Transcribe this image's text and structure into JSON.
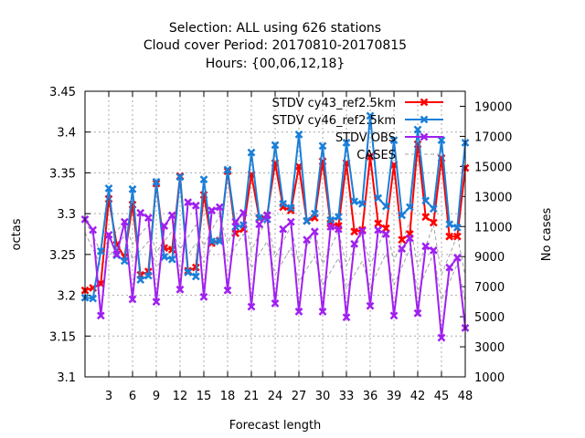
{
  "chart_data": {
    "type": "line",
    "title_lines": [
      "Selection: ALL using   626 stations",
      "Cloud cover   Period: 20170810-20170815",
      "Hours: {00,06,12,18}"
    ],
    "xlabel": "Forecast length",
    "ylabel": "octas",
    "y2label": "No cases",
    "xlim": [
      0,
      48
    ],
    "ylim": [
      3.1,
      3.45
    ],
    "y2lim": [
      1000,
      20000
    ],
    "xticks": [
      3,
      6,
      9,
      12,
      15,
      18,
      21,
      24,
      27,
      30,
      33,
      36,
      39,
      42,
      45,
      48
    ],
    "yticks": [
      3.1,
      3.15,
      3.2,
      3.25,
      3.3,
      3.35,
      3.4,
      3.45
    ],
    "y2ticks": [
      1000,
      3000,
      5000,
      7000,
      9000,
      11000,
      13000,
      15000,
      17000,
      19000
    ],
    "grid": true,
    "legend_position": "top-right",
    "x": [
      0,
      1,
      2,
      3,
      4,
      5,
      6,
      7,
      8,
      9,
      10,
      11,
      12,
      13,
      14,
      15,
      16,
      17,
      18,
      19,
      20,
      21,
      22,
      23,
      24,
      25,
      26,
      27,
      28,
      29,
      30,
      31,
      32,
      33,
      34,
      35,
      36,
      37,
      38,
      39,
      40,
      41,
      42,
      43,
      44,
      45,
      46,
      47,
      48
    ],
    "series": [
      {
        "name": "STDV cy43_ref2.5km",
        "color": "#ff0000",
        "marker": "x",
        "axis": "y",
        "values": [
          3.206,
          3.209,
          3.214,
          3.318,
          3.262,
          3.247,
          3.311,
          3.225,
          3.229,
          3.337,
          3.258,
          3.256,
          3.346,
          3.23,
          3.234,
          3.323,
          3.264,
          3.267,
          3.352,
          3.276,
          3.281,
          3.348,
          3.294,
          3.298,
          3.362,
          3.308,
          3.304,
          3.358,
          3.291,
          3.295,
          3.364,
          3.288,
          3.285,
          3.362,
          3.278,
          3.28,
          3.37,
          3.288,
          3.282,
          3.36,
          3.268,
          3.275,
          3.385,
          3.296,
          3.289,
          3.368,
          3.272,
          3.272,
          3.356
        ]
      },
      {
        "name": "STDV cy46_ref2.5km",
        "color": "#1a7fd9",
        "marker": "x",
        "axis": "y",
        "values": [
          3.197,
          3.196,
          3.254,
          3.331,
          3.249,
          3.242,
          3.33,
          3.219,
          3.224,
          3.339,
          3.247,
          3.244,
          3.345,
          3.228,
          3.223,
          3.342,
          3.266,
          3.266,
          3.354,
          3.284,
          3.286,
          3.375,
          3.295,
          3.293,
          3.384,
          3.312,
          3.307,
          3.397,
          3.291,
          3.3,
          3.383,
          3.292,
          3.296,
          3.387,
          3.315,
          3.312,
          3.42,
          3.319,
          3.309,
          3.39,
          3.298,
          3.308,
          3.403,
          3.316,
          3.306,
          3.39,
          3.287,
          3.283,
          3.387
        ]
      },
      {
        "name": "STDV OBS",
        "color": "#a020f0",
        "marker": "x",
        "axis": "y",
        "values": [
          3.293,
          3.28,
          3.175,
          3.274,
          3.25,
          3.29,
          3.195,
          3.301,
          3.295,
          3.192,
          3.285,
          3.298,
          3.207,
          3.314,
          3.31,
          3.198,
          3.304,
          3.308,
          3.206,
          3.29,
          3.301,
          3.186,
          3.287,
          3.298,
          3.19,
          3.281,
          3.29,
          3.18,
          3.268,
          3.278,
          3.18,
          3.284,
          3.281,
          3.173,
          3.263,
          3.279,
          3.187,
          3.28,
          3.275,
          3.175,
          3.257,
          3.27,
          3.178,
          3.26,
          3.255,
          3.148,
          3.234,
          3.246,
          3.16
        ]
      },
      {
        "name": "CASES",
        "color": "#a0a0a0",
        "dashed": true,
        "axis": "y2",
        "values": [
          10600,
          9500,
          8400,
          9000,
          9700,
          10400,
          8800,
          9400,
          10000,
          8300,
          8900,
          9500,
          8300,
          9100,
          9900,
          8600,
          9600,
          10400,
          8700,
          9700,
          10500,
          8200,
          9200,
          10000,
          7800,
          8700,
          9600,
          7300,
          8200,
          9000,
          7100,
          8000,
          8900,
          6900,
          7800,
          8700,
          6900,
          8100,
          9200,
          7100,
          8300,
          9500,
          6700,
          8000,
          9200,
          6100,
          7300,
          8500,
          6000
        ]
      },
      {
        "name": "",
        "color": "#a0a0a0",
        "dashed": true,
        "axis": "y2",
        "values": [
          11400,
          10400,
          9300,
          10100,
          10700,
          11300,
          9800,
          10500,
          11100,
          9300,
          10000,
          10700,
          9500,
          10300,
          11100,
          9700,
          10800,
          11700,
          9900,
          11000,
          12000,
          9400,
          10500,
          11500,
          9000,
          10000,
          11000,
          8600,
          9700,
          10700,
          8500,
          9600,
          10700,
          8400,
          9500,
          10600,
          8400,
          9700,
          11000,
          8700,
          10000,
          11300,
          8300,
          9700,
          11100,
          7800,
          9100,
          10400,
          7700
        ]
      }
    ]
  }
}
